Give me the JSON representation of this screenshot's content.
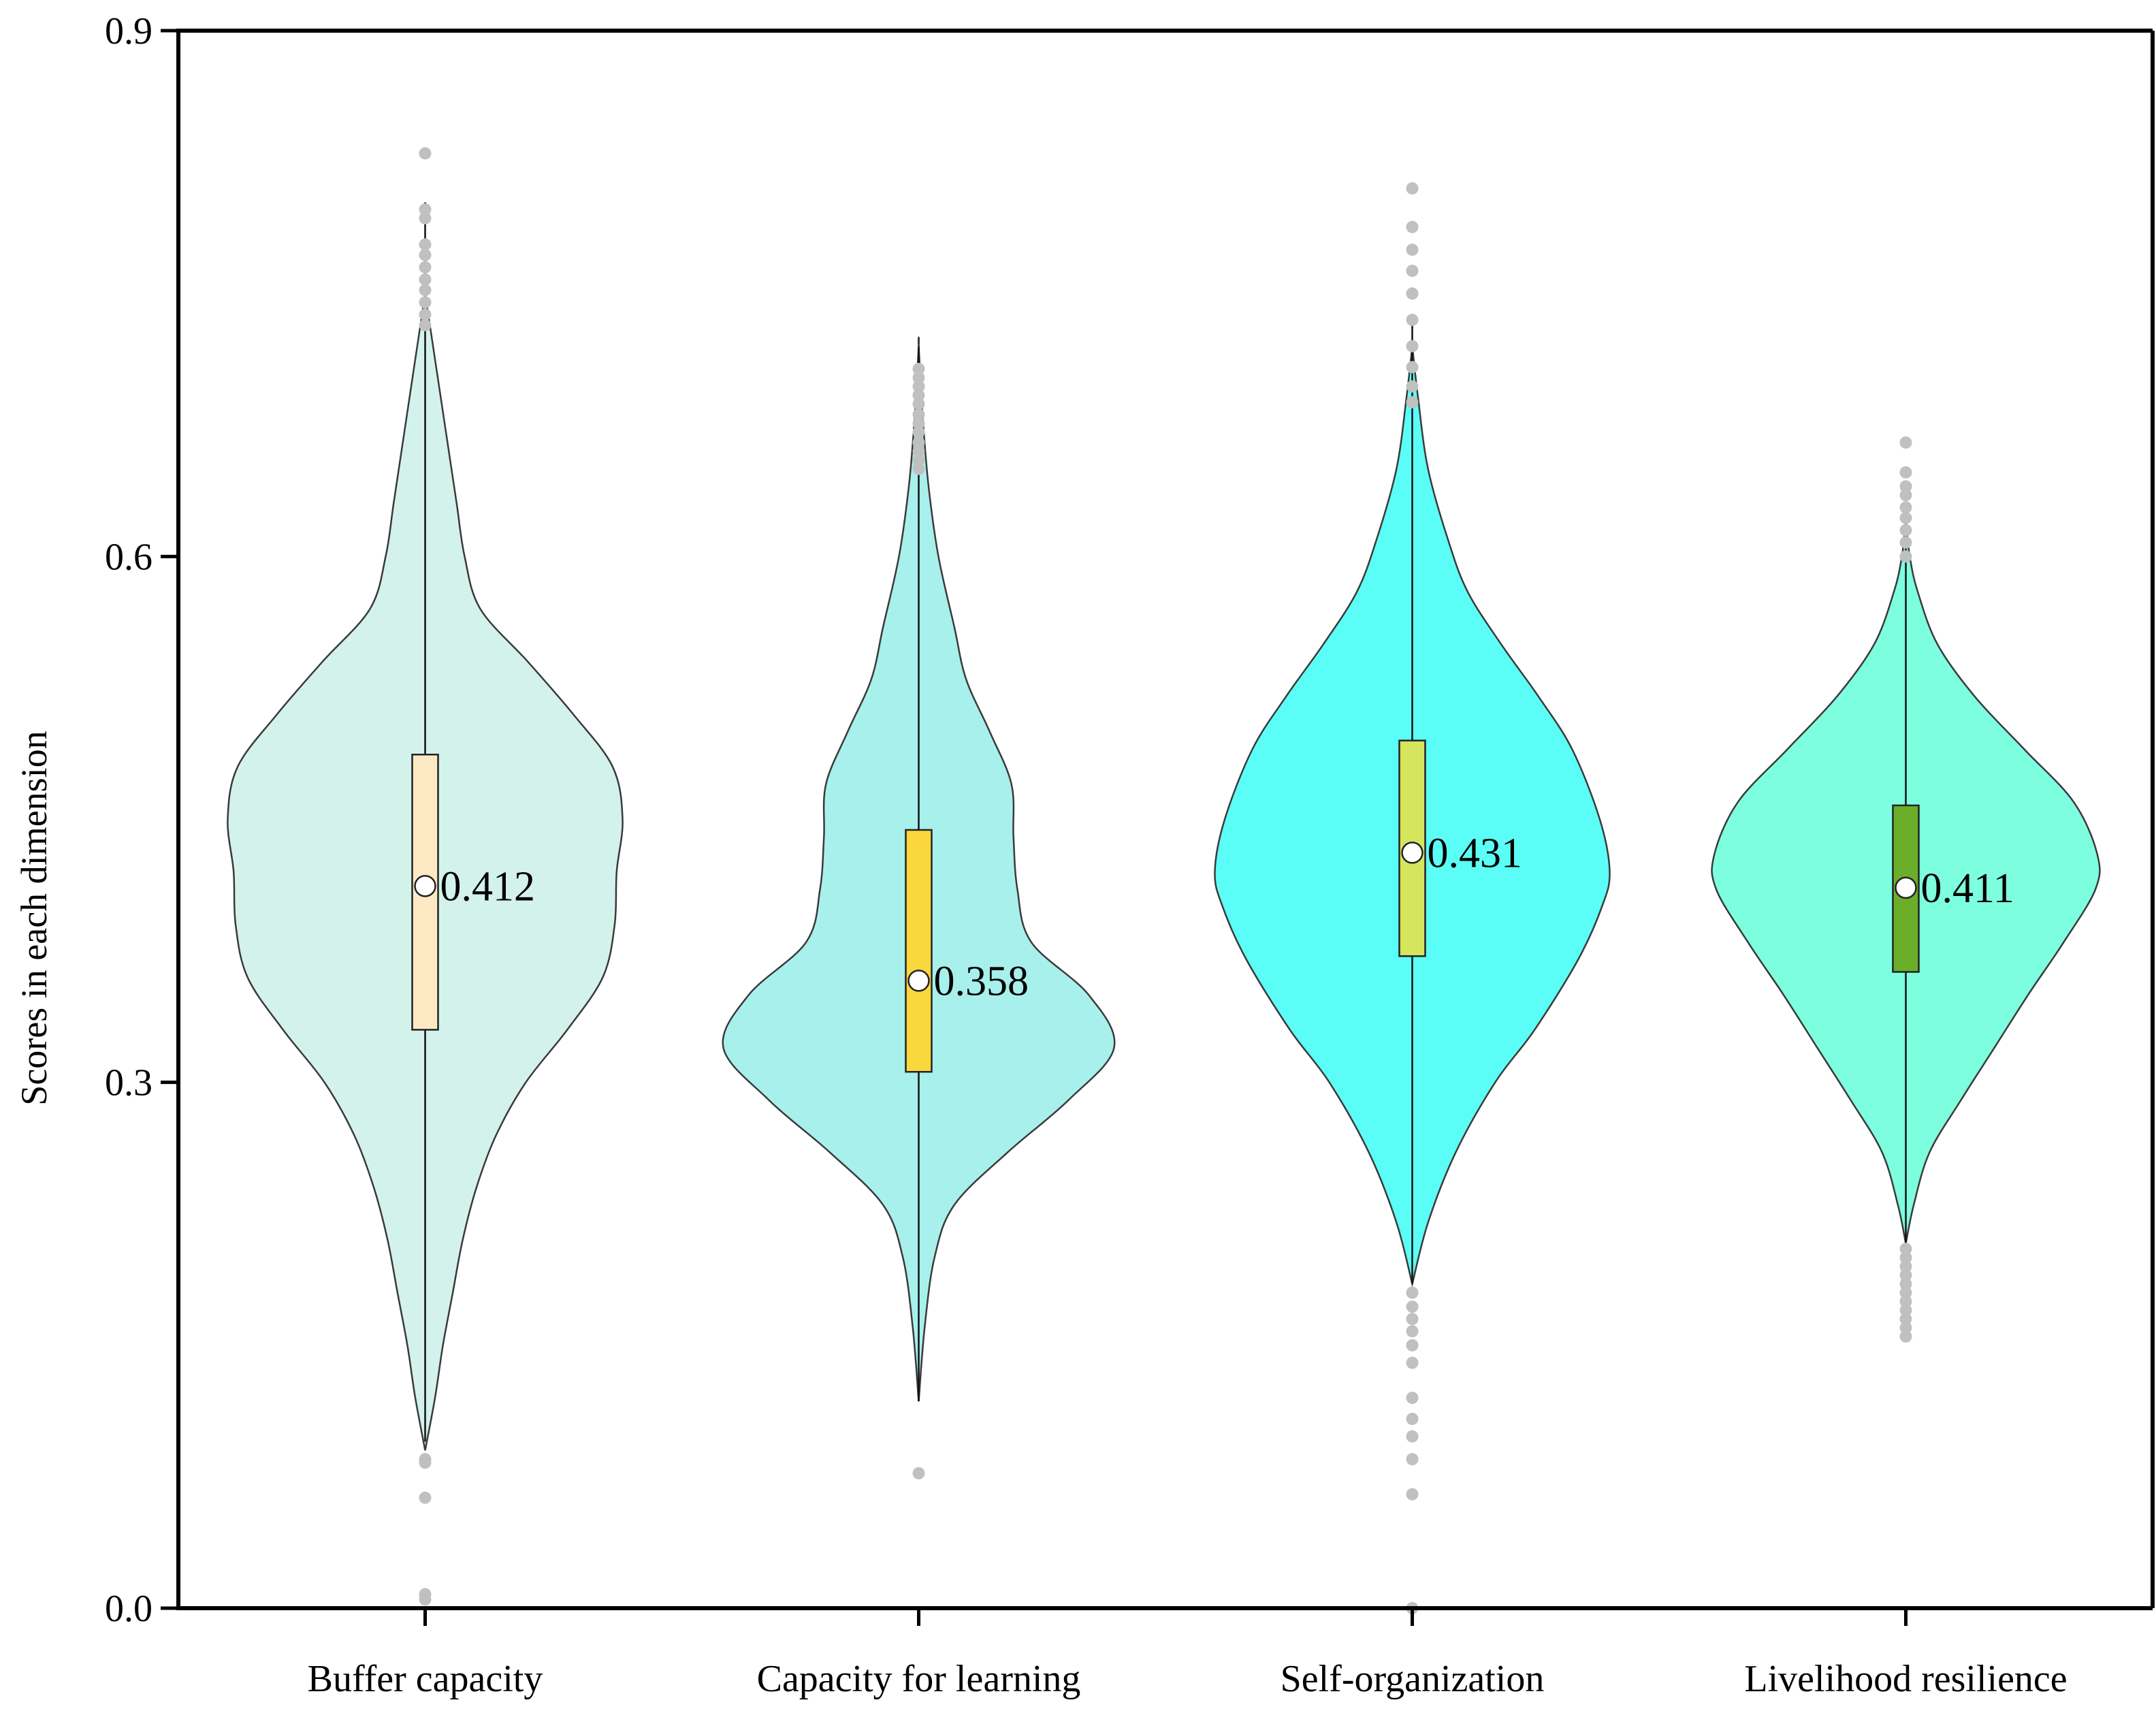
{
  "chart_data": {
    "type": "violin",
    "title": "",
    "xlabel": "",
    "ylabel": "Scores in each dimension",
    "ylim": [
      0.0,
      0.9
    ],
    "yticks": [
      0.0,
      0.3,
      0.6,
      0.9
    ],
    "ytick_labels": [
      "0.0",
      "0.3",
      "0.6",
      "0.9"
    ],
    "grid": false,
    "legend": "none",
    "categories": [
      "Buffer capacity",
      "Capacity for learning",
      "Self-organization",
      "Livelihood resilience"
    ],
    "series": [
      {
        "name": "Buffer capacity",
        "violin_color": "#d4f2ec",
        "box_color": "#fde9c4",
        "median": 0.412,
        "median_label": "0.412",
        "q1": 0.33,
        "q3": 0.487,
        "whisker_low": 0.095,
        "whisker_high": 0.802,
        "density": [
          [
            0.09,
            0.0
          ],
          [
            0.12,
            0.05
          ],
          [
            0.15,
            0.09
          ],
          [
            0.18,
            0.14
          ],
          [
            0.21,
            0.19
          ],
          [
            0.24,
            0.26
          ],
          [
            0.27,
            0.36
          ],
          [
            0.3,
            0.51
          ],
          [
            0.33,
            0.72
          ],
          [
            0.36,
            0.9
          ],
          [
            0.39,
            0.96
          ],
          [
            0.42,
            0.97
          ],
          [
            0.45,
            1.0
          ],
          [
            0.48,
            0.95
          ],
          [
            0.51,
            0.75
          ],
          [
            0.54,
            0.52
          ],
          [
            0.57,
            0.28
          ],
          [
            0.6,
            0.2
          ],
          [
            0.63,
            0.16
          ],
          [
            0.66,
            0.12
          ],
          [
            0.69,
            0.08
          ],
          [
            0.72,
            0.04
          ],
          [
            0.75,
            0.0
          ]
        ],
        "outliers": [
          0.83,
          0.798,
          0.793,
          0.778,
          0.772,
          0.765,
          0.758,
          0.752,
          0.745,
          0.738,
          0.732,
          0.085,
          0.083,
          0.063,
          0.008,
          0.005
        ]
      },
      {
        "name": "Capacity for learning",
        "violin_color": "#a8f0ec",
        "box_color": "#fbd73e",
        "median": 0.358,
        "median_label": "0.358",
        "q1": 0.306,
        "q3": 0.444,
        "whisker_low": 0.118,
        "whisker_high": 0.72,
        "density": [
          [
            0.118,
            0.0
          ],
          [
            0.16,
            0.03
          ],
          [
            0.2,
            0.08
          ],
          [
            0.23,
            0.18
          ],
          [
            0.26,
            0.45
          ],
          [
            0.29,
            0.76
          ],
          [
            0.32,
            0.99
          ],
          [
            0.35,
            0.86
          ],
          [
            0.38,
            0.57
          ],
          [
            0.41,
            0.5
          ],
          [
            0.44,
            0.48
          ],
          [
            0.47,
            0.47
          ],
          [
            0.5,
            0.36
          ],
          [
            0.53,
            0.24
          ],
          [
            0.56,
            0.18
          ],
          [
            0.6,
            0.1
          ],
          [
            0.64,
            0.05
          ],
          [
            0.68,
            0.02
          ],
          [
            0.72,
            0.0
          ]
        ],
        "outliers": [
          0.707,
          0.702,
          0.697,
          0.692,
          0.687,
          0.681,
          0.676,
          0.671,
          0.665,
          0.66,
          0.655,
          0.65,
          0.077
        ]
      },
      {
        "name": "Self-organization",
        "violin_color": "#5bfef6",
        "box_color": "#d6e55e",
        "median": 0.431,
        "median_label": "0.431",
        "q1": 0.372,
        "q3": 0.495,
        "whisker_low": 0.185,
        "whisker_high": 0.735,
        "density": [
          [
            0.185,
            0.0
          ],
          [
            0.22,
            0.08
          ],
          [
            0.26,
            0.22
          ],
          [
            0.3,
            0.42
          ],
          [
            0.33,
            0.62
          ],
          [
            0.37,
            0.84
          ],
          [
            0.4,
            0.96
          ],
          [
            0.42,
            1.0
          ],
          [
            0.45,
            0.95
          ],
          [
            0.49,
            0.81
          ],
          [
            0.52,
            0.64
          ],
          [
            0.55,
            0.45
          ],
          [
            0.58,
            0.28
          ],
          [
            0.61,
            0.18
          ],
          [
            0.65,
            0.08
          ],
          [
            0.69,
            0.03
          ],
          [
            0.72,
            0.0
          ]
        ],
        "outliers": [
          0.81,
          0.788,
          0.775,
          0.763,
          0.75,
          0.735,
          0.72,
          0.708,
          0.697,
          0.688,
          0.18,
          0.172,
          0.165,
          0.158,
          0.15,
          0.14,
          0.12,
          0.108,
          0.098,
          0.085,
          0.065,
          0.0
        ]
      },
      {
        "name": "Livelihood resilience",
        "violin_color": "#7dfedf",
        "box_color": "#6aae2a",
        "median": 0.411,
        "median_label": "0.411",
        "q1": 0.363,
        "q3": 0.458,
        "whisker_low": 0.208,
        "whisker_high": 0.62,
        "density": [
          [
            0.208,
            0.0
          ],
          [
            0.23,
            0.04
          ],
          [
            0.26,
            0.12
          ],
          [
            0.29,
            0.28
          ],
          [
            0.32,
            0.45
          ],
          [
            0.35,
            0.62
          ],
          [
            0.38,
            0.8
          ],
          [
            0.41,
            0.96
          ],
          [
            0.43,
            0.97
          ],
          [
            0.46,
            0.85
          ],
          [
            0.49,
            0.6
          ],
          [
            0.52,
            0.35
          ],
          [
            0.55,
            0.16
          ],
          [
            0.58,
            0.06
          ],
          [
            0.6,
            0.02
          ],
          [
            0.62,
            0.0
          ]
        ],
        "outliers": [
          0.665,
          0.648,
          0.64,
          0.635,
          0.628,
          0.622,
          0.615,
          0.608,
          0.6,
          0.205,
          0.2,
          0.195,
          0.19,
          0.185,
          0.18,
          0.175,
          0.17,
          0.165,
          0.16,
          0.155
        ]
      }
    ],
    "colors": {
      "axis": "#000000",
      "violin_stroke": "#3a3a3a",
      "outlier": "#c0c0c0",
      "median_marker": "#ffffff"
    }
  }
}
